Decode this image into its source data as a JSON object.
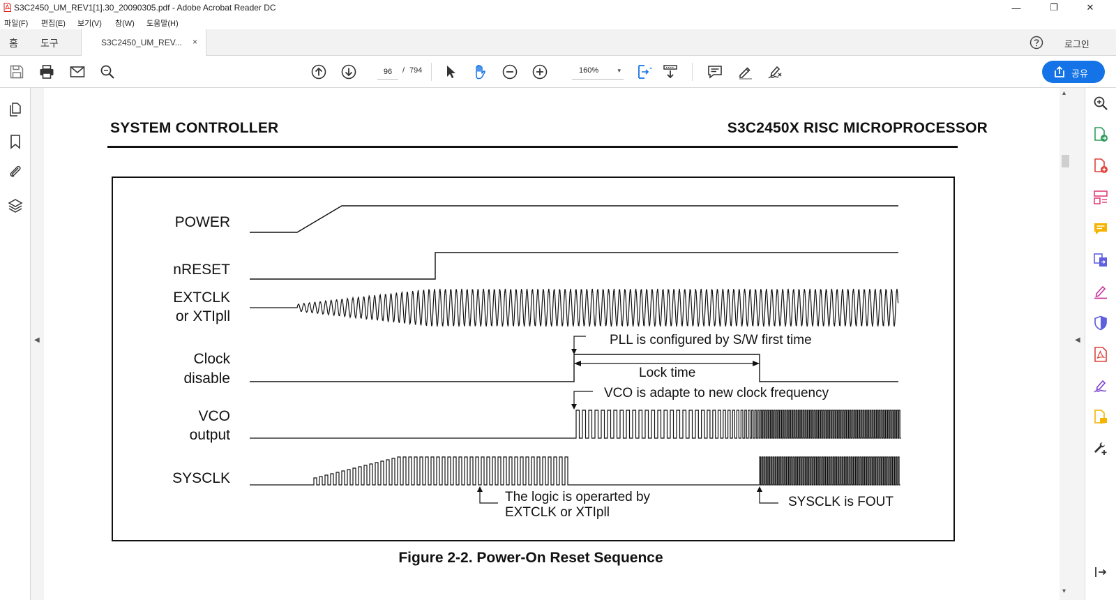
{
  "window": {
    "title": "S3C2450_UM_REV1[1].30_20090305.pdf - Adobe Acrobat Reader DC",
    "minimize": "—",
    "restore": "❐",
    "close": "✕"
  },
  "menu": {
    "items": [
      "파일(F)",
      "편집(E)",
      "보기(V)",
      "창(W)",
      "도움말(H)"
    ]
  },
  "tabs": {
    "home": "홈",
    "tools": "도구",
    "document": "S3C2450_UM_REV...",
    "close": "×",
    "login": "로그인"
  },
  "toolbar": {
    "page_current": "96",
    "page_separator": "/",
    "page_total": "794",
    "zoom": "160%",
    "zoom_caret": "▾",
    "share_label": "공유",
    "accent": "#1473e6"
  },
  "scroll": {
    "up": "▴",
    "down": "▾",
    "left_collapse": "◀",
    "right_collapse": "◀"
  },
  "page": {
    "header_left": "SYSTEM CONTROLLER",
    "header_right": "S3C2450X RISC MICROPROCESSOR",
    "caption": "Figure 2-2. Power-On Reset Sequence"
  },
  "diagram": {
    "signals": {
      "power": "POWER",
      "nreset": "nRESET",
      "extclk_1": "EXTCLK",
      "extclk_2": "or XTIpll",
      "clock_disable_1": "Clock",
      "clock_disable_2": "disable",
      "vco_1": "VCO",
      "vco_2": "output",
      "sysclk": "SYSCLK"
    },
    "annotations": {
      "pll_configured": "PLL is configured by S/W first time",
      "lock_time": "Lock time",
      "vco_adapt": "VCO is adapte to new clock frequency",
      "logic_1": "The logic is operarted by",
      "logic_2": "EXTCLK or XTIpll",
      "sysclk_fout": "SYSCLK is FOUT"
    }
  }
}
